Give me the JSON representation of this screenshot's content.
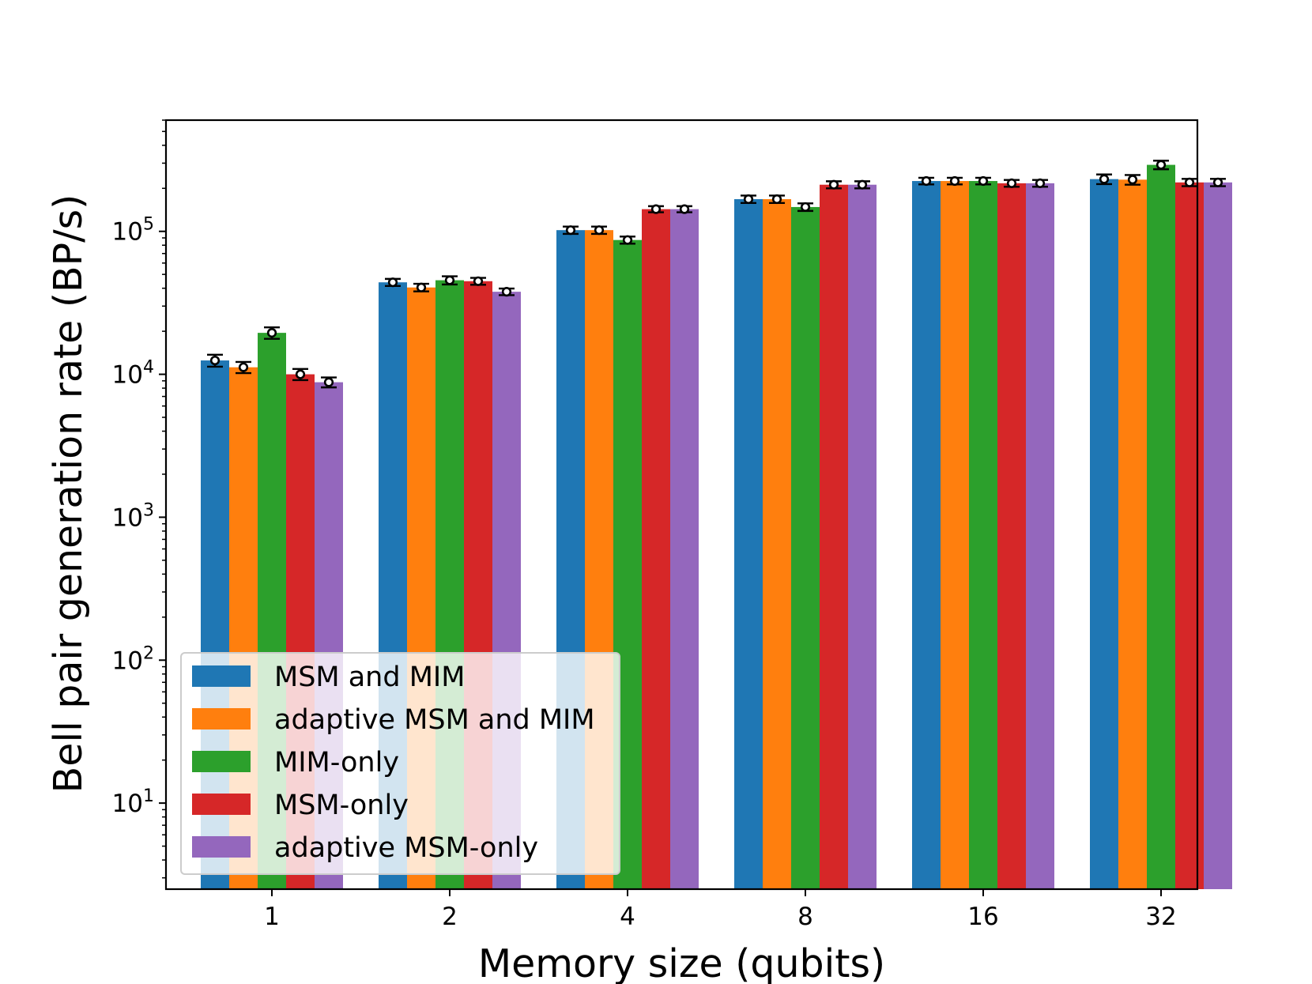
{
  "chart_data": {
    "type": "bar",
    "xlabel": "Memory size (qubits)",
    "ylabel": "Bell pair generation rate (BP/s)",
    "yscale": "log",
    "ylim": [
      2.5,
      600000
    ],
    "yticks": [
      {
        "value": 10,
        "base": "10",
        "exp": "1"
      },
      {
        "value": 100,
        "base": "10",
        "exp": "2"
      },
      {
        "value": 1000,
        "base": "10",
        "exp": "3"
      },
      {
        "value": 10000,
        "base": "10",
        "exp": "4"
      },
      {
        "value": 100000,
        "base": "10",
        "exp": "5"
      }
    ],
    "categories": [
      "1",
      "2",
      "4",
      "8",
      "16",
      "32"
    ],
    "series": [
      {
        "name": "MSM and MIM",
        "color": "#1f77b4",
        "values": [
          12500,
          44000,
          102000,
          168000,
          225000,
          232000
        ],
        "errors": [
          1200,
          2500,
          6000,
          10000,
          12000,
          18000
        ]
      },
      {
        "name": "adaptive MSM and MIM",
        "color": "#ff7f0e",
        "values": [
          11200,
          40500,
          102000,
          168000,
          225000,
          230000
        ],
        "errors": [
          1000,
          2500,
          6000,
          10000,
          12000,
          18000
        ]
      },
      {
        "name": "MIM-only",
        "color": "#2ca02c",
        "values": [
          19500,
          45500,
          87000,
          148000,
          225000,
          292000
        ],
        "errors": [
          1800,
          3000,
          5000,
          9000,
          12000,
          20000
        ]
      },
      {
        "name": "MSM-only",
        "color": "#d62728",
        "values": [
          10000,
          44800,
          143000,
          212000,
          217000,
          220000
        ],
        "errors": [
          900,
          2500,
          7000,
          12000,
          12000,
          13000
        ]
      },
      {
        "name": "adaptive MSM-only",
        "color": "#9467bd",
        "values": [
          8800,
          37800,
          143000,
          212000,
          217000,
          220000
        ],
        "errors": [
          700,
          2000,
          7000,
          12000,
          12000,
          13000
        ]
      }
    ],
    "grid": false,
    "legend_position": "lower-left",
    "markers": "open circle with error bars"
  }
}
